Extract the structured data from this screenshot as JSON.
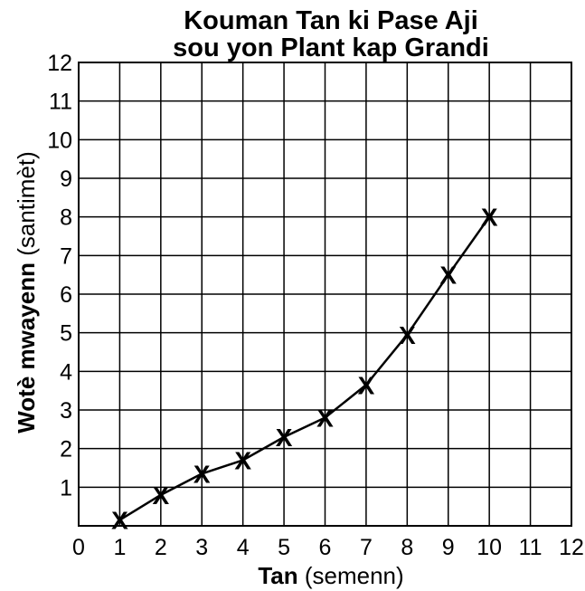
{
  "chart_data": {
    "type": "line",
    "title": [
      "Kouman Tan ki Pase Aji",
      "sou yon Plant kap Grandi"
    ],
    "xlabel": {
      "bold": "Tan",
      "normal": " (semenn)"
    },
    "ylabel": {
      "bold": "Wotè mwayenn",
      "normal": " (santimèt)"
    },
    "xlim": [
      0,
      12
    ],
    "ylim": [
      0,
      12
    ],
    "x_ticks": [
      "0",
      "1",
      "2",
      "3",
      "4",
      "5",
      "6",
      "7",
      "8",
      "9",
      "10",
      "11",
      "12"
    ],
    "y_ticks": [
      "1",
      "2",
      "3",
      "4",
      "5",
      "6",
      "7",
      "8",
      "9",
      "10",
      "11",
      "12"
    ],
    "grid": true,
    "marker": "X",
    "series": [
      {
        "x": [
          1,
          2,
          3,
          4,
          5,
          6,
          7,
          8,
          9,
          10
        ],
        "y": [
          0.15,
          0.8,
          1.35,
          1.7,
          2.3,
          2.8,
          3.65,
          4.95,
          6.5,
          8.0
        ]
      }
    ]
  }
}
